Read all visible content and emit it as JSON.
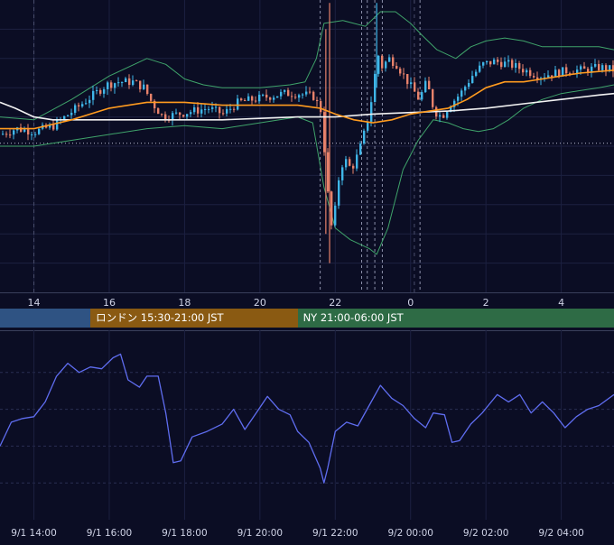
{
  "colors": {
    "background": "#0b0d24",
    "grid": "#1c2040",
    "bull_candle": "#3fb6e8",
    "bear_candle": "#e8826b",
    "ma_short": "#ff9b1f",
    "ma_long": "#f2f2f2",
    "bollinger": "#3fa36a",
    "oscillator": "#5f6df0",
    "event_line": "#8a8ea8"
  },
  "sessions": [
    {
      "label": "",
      "color": "#2f5383"
    },
    {
      "label": "ロンドン 15:30-21:00 JST",
      "color": "#8a5a12"
    },
    {
      "label": "NY 21:00-06:00 JST",
      "color": "#2e6b45"
    }
  ],
  "chart_data": [
    {
      "type": "candlestick",
      "title": "",
      "x_unit": "hour (JST)",
      "x_ticks": [
        "14",
        "16",
        "18",
        "20",
        "22",
        "0",
        "2",
        "4"
      ],
      "x_tick_hours": [
        14,
        16,
        18,
        20,
        22,
        24,
        26,
        28
      ],
      "x_range": [
        13.1,
        29.4
      ],
      "y_range": [
        0,
        100
      ],
      "y_axis_labels_visible": false,
      "horizontal_reference_level": 51,
      "event_lines_hours": [
        21.6,
        22.7,
        22.85,
        23.05,
        23.25,
        24.25
      ],
      "overlays": [
        "moving average (orange)",
        "moving average (white)",
        "Bollinger bands (green)"
      ],
      "close_path": [
        [
          13.1,
          54
        ],
        [
          13.5,
          56
        ],
        [
          14.0,
          55
        ],
        [
          14.5,
          57
        ],
        [
          15.0,
          62
        ],
        [
          15.5,
          67
        ],
        [
          15.9,
          71
        ],
        [
          16.2,
          72
        ],
        [
          16.6,
          72
        ],
        [
          16.9,
          70
        ],
        [
          17.1,
          65
        ],
        [
          17.4,
          60
        ],
        [
          17.8,
          61
        ],
        [
          18.2,
          62
        ],
        [
          18.6,
          63
        ],
        [
          19.0,
          61
        ],
        [
          19.4,
          65
        ],
        [
          19.8,
          66
        ],
        [
          20.2,
          67
        ],
        [
          20.6,
          68
        ],
        [
          21.0,
          68
        ],
        [
          21.4,
          67
        ],
        [
          21.6,
          62
        ],
        [
          21.8,
          30
        ],
        [
          21.9,
          20
        ],
        [
          22.05,
          38
        ],
        [
          22.2,
          46
        ],
        [
          22.4,
          42
        ],
        [
          22.6,
          48
        ],
        [
          22.8,
          57
        ],
        [
          22.95,
          67
        ],
        [
          23.1,
          82
        ],
        [
          23.2,
          77
        ],
        [
          23.4,
          80
        ],
        [
          23.6,
          78
        ],
        [
          23.8,
          74
        ],
        [
          24.0,
          70
        ],
        [
          24.2,
          66
        ],
        [
          24.4,
          72
        ],
        [
          24.6,
          62
        ],
        [
          24.8,
          60
        ],
        [
          25.0,
          64
        ],
        [
          25.3,
          68
        ],
        [
          25.6,
          74
        ],
        [
          25.9,
          78
        ],
        [
          26.2,
          79
        ],
        [
          26.6,
          78
        ],
        [
          27.0,
          76
        ],
        [
          27.4,
          74
        ],
        [
          27.8,
          75
        ],
        [
          28.2,
          76
        ],
        [
          28.6,
          76
        ],
        [
          29.0,
          77
        ],
        [
          29.4,
          76
        ]
      ],
      "ma_short_path": [
        [
          13.1,
          56
        ],
        [
          14,
          56
        ],
        [
          15,
          59
        ],
        [
          16,
          63
        ],
        [
          17,
          65
        ],
        [
          18,
          65
        ],
        [
          19,
          64
        ],
        [
          20,
          64
        ],
        [
          21,
          64
        ],
        [
          21.6,
          63
        ],
        [
          22,
          61
        ],
        [
          22.5,
          59
        ],
        [
          23,
          58
        ],
        [
          23.5,
          59
        ],
        [
          24,
          61
        ],
        [
          24.5,
          62
        ],
        [
          25,
          63
        ],
        [
          25.5,
          66
        ],
        [
          26,
          70
        ],
        [
          26.5,
          72
        ],
        [
          27,
          72
        ],
        [
          27.5,
          73
        ],
        [
          28,
          74
        ],
        [
          28.5,
          75
        ],
        [
          29.4,
          76
        ]
      ],
      "ma_long_path": [
        [
          13.1,
          65
        ],
        [
          13.5,
          63
        ],
        [
          14,
          60
        ],
        [
          14.5,
          59
        ],
        [
          15,
          59
        ],
        [
          16,
          59
        ],
        [
          17,
          59
        ],
        [
          18,
          59
        ],
        [
          19,
          59
        ],
        [
          20,
          59.5
        ],
        [
          21,
          60
        ],
        [
          22,
          60
        ],
        [
          23,
          61
        ],
        [
          24,
          61.5
        ],
        [
          25,
          62
        ],
        [
          26,
          63
        ],
        [
          27,
          64.5
        ],
        [
          28,
          66
        ],
        [
          29,
          67.5
        ],
        [
          29.4,
          68
        ]
      ],
      "bollinger_upper_path": [
        [
          13.1,
          60
        ],
        [
          14,
          59
        ],
        [
          15,
          66
        ],
        [
          16,
          74
        ],
        [
          17,
          80
        ],
        [
          17.5,
          78
        ],
        [
          18,
          73
        ],
        [
          18.5,
          71
        ],
        [
          19,
          70
        ],
        [
          20,
          70
        ],
        [
          20.8,
          71
        ],
        [
          21.2,
          72
        ],
        [
          21.5,
          80
        ],
        [
          21.7,
          92
        ],
        [
          22.2,
          93
        ],
        [
          22.8,
          91
        ],
        [
          23.2,
          96
        ],
        [
          23.6,
          96
        ],
        [
          24.0,
          92
        ],
        [
          24.3,
          88
        ],
        [
          24.7,
          83
        ],
        [
          25.2,
          80
        ],
        [
          25.6,
          84
        ],
        [
          26.0,
          86
        ],
        [
          26.5,
          87
        ],
        [
          27.0,
          86
        ],
        [
          27.5,
          84
        ],
        [
          28.0,
          84
        ],
        [
          28.5,
          84
        ],
        [
          29.0,
          84
        ],
        [
          29.4,
          83
        ]
      ],
      "bollinger_lower_path": [
        [
          13.1,
          50
        ],
        [
          14,
          50
        ],
        [
          15,
          52
        ],
        [
          16,
          54
        ],
        [
          17,
          56
        ],
        [
          18,
          57
        ],
        [
          19,
          56
        ],
        [
          20,
          58
        ],
        [
          21,
          60
        ],
        [
          21.4,
          58
        ],
        [
          21.7,
          36
        ],
        [
          22.0,
          22
        ],
        [
          22.4,
          18
        ],
        [
          22.9,
          15
        ],
        [
          23.1,
          13
        ],
        [
          23.4,
          22
        ],
        [
          23.8,
          42
        ],
        [
          24.2,
          52
        ],
        [
          24.6,
          59
        ],
        [
          25.0,
          58
        ],
        [
          25.4,
          56
        ],
        [
          25.8,
          55
        ],
        [
          26.2,
          56
        ],
        [
          26.6,
          59
        ],
        [
          27.0,
          63
        ],
        [
          27.5,
          66
        ],
        [
          28.0,
          68
        ],
        [
          28.5,
          69
        ],
        [
          29.0,
          70
        ],
        [
          29.4,
          71
        ]
      ]
    },
    {
      "type": "line",
      "title": "",
      "series": [
        {
          "name": ""
        }
      ],
      "x_ticks": [
        "9/1 14:00",
        "9/1 16:00",
        "9/1 18:00",
        "9/1 20:00",
        "9/1 22:00",
        "9/2 00:00",
        "9/2 02:00",
        "9/2 04:00"
      ],
      "x_tick_hours": [
        14,
        16,
        18,
        20,
        22,
        24,
        26,
        28
      ],
      "x_range": [
        13.1,
        29.4
      ],
      "y_range": [
        0,
        100
      ],
      "y_axis_labels_visible": false,
      "values_path": [
        [
          13.1,
          40
        ],
        [
          13.4,
          53
        ],
        [
          13.7,
          55
        ],
        [
          14.0,
          56
        ],
        [
          14.3,
          64
        ],
        [
          14.6,
          78
        ],
        [
          14.9,
          85
        ],
        [
          15.2,
          80
        ],
        [
          15.5,
          83
        ],
        [
          15.8,
          82
        ],
        [
          16.1,
          88
        ],
        [
          16.3,
          90
        ],
        [
          16.5,
          76
        ],
        [
          16.8,
          72
        ],
        [
          17.0,
          78
        ],
        [
          17.3,
          78
        ],
        [
          17.5,
          58
        ],
        [
          17.7,
          31
        ],
        [
          17.9,
          32
        ],
        [
          18.2,
          45
        ],
        [
          18.6,
          48
        ],
        [
          19.0,
          52
        ],
        [
          19.3,
          60
        ],
        [
          19.6,
          49
        ],
        [
          19.9,
          58
        ],
        [
          20.2,
          67
        ],
        [
          20.5,
          60
        ],
        [
          20.8,
          57
        ],
        [
          21.0,
          48
        ],
        [
          21.3,
          42
        ],
        [
          21.6,
          28
        ],
        [
          21.7,
          20
        ],
        [
          21.8,
          28
        ],
        [
          22.0,
          48
        ],
        [
          22.3,
          53
        ],
        [
          22.6,
          51
        ],
        [
          22.9,
          62
        ],
        [
          23.2,
          73
        ],
        [
          23.5,
          66
        ],
        [
          23.8,
          62
        ],
        [
          24.1,
          55
        ],
        [
          24.4,
          50
        ],
        [
          24.6,
          58
        ],
        [
          24.9,
          57
        ],
        [
          25.1,
          42
        ],
        [
          25.3,
          43
        ],
        [
          25.6,
          52
        ],
        [
          25.9,
          58
        ],
        [
          26.1,
          63
        ],
        [
          26.3,
          68
        ],
        [
          26.6,
          64
        ],
        [
          26.9,
          68
        ],
        [
          27.2,
          58
        ],
        [
          27.5,
          64
        ],
        [
          27.8,
          58
        ],
        [
          28.1,
          50
        ],
        [
          28.4,
          56
        ],
        [
          28.7,
          60
        ],
        [
          29.0,
          62
        ],
        [
          29.4,
          68
        ]
      ]
    }
  ]
}
